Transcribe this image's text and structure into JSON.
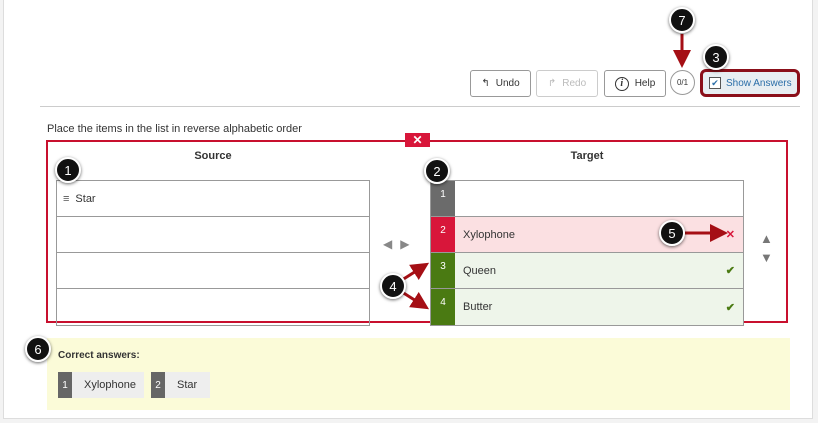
{
  "toolbar": {
    "undo": "Undo",
    "redo": "Redo",
    "help": "Help",
    "score": "0/1",
    "show_answers": "Show Answers",
    "show_answers_checked": true
  },
  "question": {
    "instruction": "Place the items in the list in reverse alphabetic order",
    "source_header": "Source",
    "target_header": "Target"
  },
  "source": {
    "items": [
      "Star"
    ]
  },
  "target": {
    "rows": [
      {
        "num": "1",
        "label": "",
        "status": "empty",
        "color": "#6b6b6b"
      },
      {
        "num": "2",
        "label": "Xylophone",
        "status": "incorrect",
        "color": "#d8163a"
      },
      {
        "num": "3",
        "label": "Queen",
        "status": "correct",
        "color": "#4a7a12"
      },
      {
        "num": "4",
        "label": "Butter",
        "status": "correct",
        "color": "#4a7a12"
      }
    ]
  },
  "correct_answers": {
    "title": "Correct answers:",
    "items": [
      {
        "num": "1",
        "label": "Xylophone"
      },
      {
        "num": "2",
        "label": "Star"
      }
    ]
  },
  "callouts": [
    "1",
    "2",
    "3",
    "4",
    "5",
    "6",
    "7"
  ],
  "icons": {
    "incorrect": "✕",
    "correct": "✔",
    "remove": "✕",
    "left": "◀",
    "right": "▶",
    "up": "▲",
    "down": "▼",
    "handle": "≡"
  }
}
